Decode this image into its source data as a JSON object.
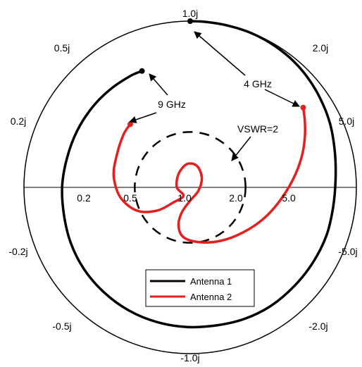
{
  "chart_data": {
    "type": "smith",
    "title": "",
    "colors": {
      "antenna1": "#000000",
      "antenna2": "#e61e1e",
      "grid": "#000000",
      "vswr": "#000000"
    },
    "axis_labels": {
      "top": "1.0j",
      "bottom": "-1.0j",
      "upper_left_05": "0.5j",
      "upper_right_20": "2.0j",
      "left_02": "0.2j",
      "right_50": "5.0j",
      "lower_left_02": "-0.2j",
      "lower_right_50": "-5.0j",
      "lower_left_05": "-0.5j",
      "lower_right_20": "-2.0j"
    },
    "real_axis_labels": [
      "0.2",
      "0.5",
      "1.0",
      "2.0",
      "5.0"
    ],
    "annotations": {
      "ghz4": "4 GHz",
      "ghz9": "9 GHz",
      "vswr": "VSWR=2"
    },
    "vswr": 2,
    "legend": {
      "placement": "bottom-center",
      "entries": [
        "Antenna 1",
        "Antenna 2"
      ]
    },
    "series": [
      {
        "name": "Antenna 1",
        "points_gamma": [
          [
            0.0,
            1.0
          ],
          [
            0.1,
            0.995
          ],
          [
            0.22,
            0.975
          ],
          [
            0.35,
            0.935
          ],
          [
            0.48,
            0.87
          ],
          [
            0.6,
            0.78
          ],
          [
            0.7,
            0.67
          ],
          [
            0.78,
            0.54
          ],
          [
            0.84,
            0.39
          ],
          [
            0.87,
            0.22
          ],
          [
            0.875,
            0.05
          ],
          [
            0.86,
            -0.12
          ],
          [
            0.82,
            -0.29
          ],
          [
            0.74,
            -0.45
          ],
          [
            0.63,
            -0.59
          ],
          [
            0.49,
            -0.71
          ],
          [
            0.33,
            -0.79
          ],
          [
            0.16,
            -0.83
          ],
          [
            -0.02,
            -0.84
          ],
          [
            -0.2,
            -0.81
          ],
          [
            -0.37,
            -0.74
          ],
          [
            -0.52,
            -0.63
          ],
          [
            -0.64,
            -0.49
          ],
          [
            -0.72,
            -0.33
          ],
          [
            -0.76,
            -0.16
          ],
          [
            -0.77,
            0.01
          ],
          [
            -0.74,
            0.18
          ],
          [
            -0.68,
            0.34
          ],
          [
            -0.59,
            0.48
          ],
          [
            -0.48,
            0.59
          ],
          [
            -0.36,
            0.67
          ],
          [
            -0.29,
            0.7
          ]
        ]
      },
      {
        "name": "Antenna 2",
        "points_gamma": [
          [
            0.68,
            0.48
          ],
          [
            0.69,
            0.4
          ],
          [
            0.69,
            0.3
          ],
          [
            0.67,
            0.18
          ],
          [
            0.62,
            0.05
          ],
          [
            0.54,
            -0.08
          ],
          [
            0.44,
            -0.19
          ],
          [
            0.32,
            -0.27
          ],
          [
            0.19,
            -0.32
          ],
          [
            0.06,
            -0.33
          ],
          [
            -0.04,
            -0.3
          ],
          [
            -0.07,
            -0.23
          ],
          [
            -0.05,
            -0.15
          ],
          [
            0.0,
            -0.08
          ],
          [
            0.05,
            -0.02
          ],
          [
            0.07,
            0.06
          ],
          [
            0.04,
            0.13
          ],
          [
            -0.02,
            0.14
          ],
          [
            -0.07,
            0.08
          ],
          [
            -0.08,
            0.0
          ],
          [
            -0.04,
            -0.05
          ],
          [
            -0.1,
            -0.09
          ],
          [
            -0.2,
            -0.14
          ],
          [
            -0.32,
            -0.14
          ],
          [
            -0.42,
            -0.06
          ],
          [
            -0.46,
            0.07
          ],
          [
            -0.44,
            0.2
          ],
          [
            -0.4,
            0.32
          ],
          [
            -0.36,
            0.38
          ]
        ]
      }
    ]
  }
}
